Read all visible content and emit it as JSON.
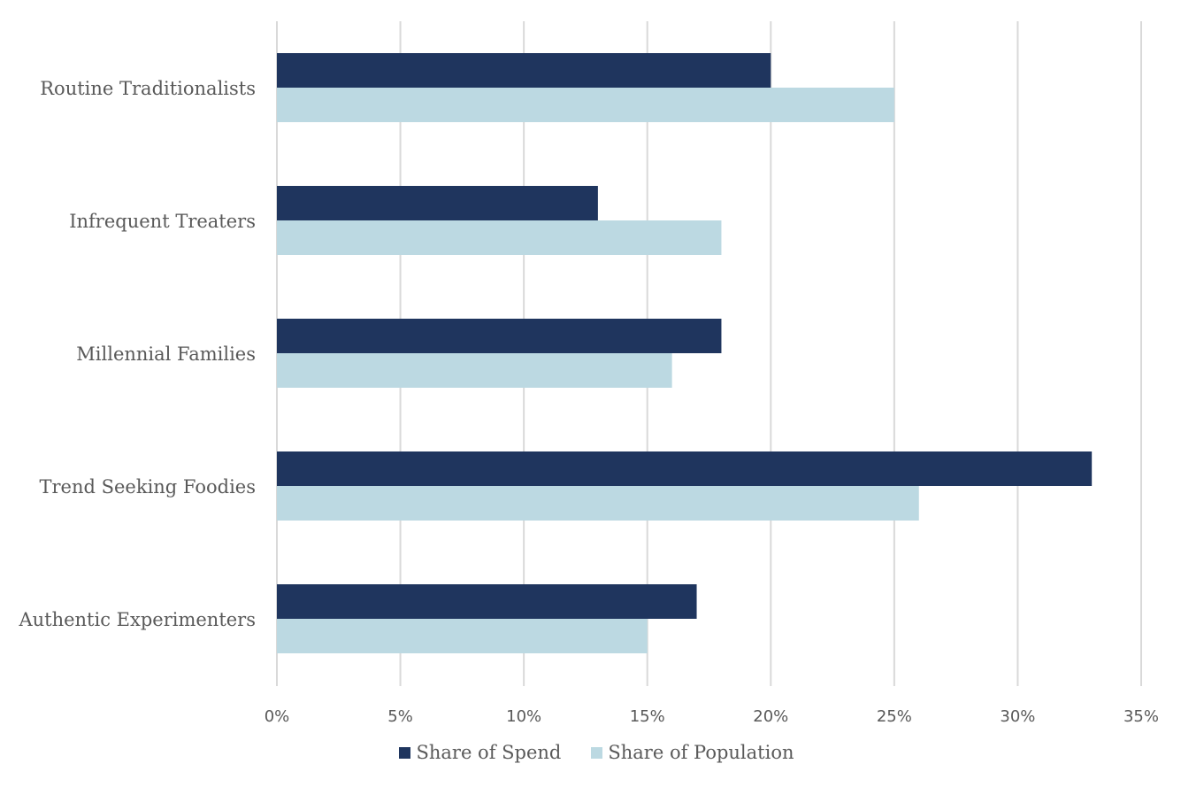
{
  "chart_data": {
    "type": "bar",
    "orientation": "horizontal",
    "categories": [
      "Routine Traditionalists",
      "Infrequent Treaters",
      "Millennial Families",
      "Trend Seeking Foodies",
      "Authentic Experimenters"
    ],
    "series": [
      {
        "name": "Share of Spend",
        "color": "#1f355e",
        "values": [
          20,
          13,
          18,
          33,
          17
        ]
      },
      {
        "name": "Share of Population",
        "color": "#bcd9e2",
        "values": [
          25,
          18,
          16,
          26,
          15
        ]
      }
    ],
    "xlim": [
      0,
      35
    ],
    "xticks": [
      0,
      5,
      10,
      15,
      20,
      25,
      30,
      35
    ],
    "xtick_labels": [
      "0%",
      "5%",
      "10%",
      "15%",
      "20%",
      "25%",
      "30%",
      "35%"
    ],
    "grid": true,
    "legend_position": "bottom"
  }
}
